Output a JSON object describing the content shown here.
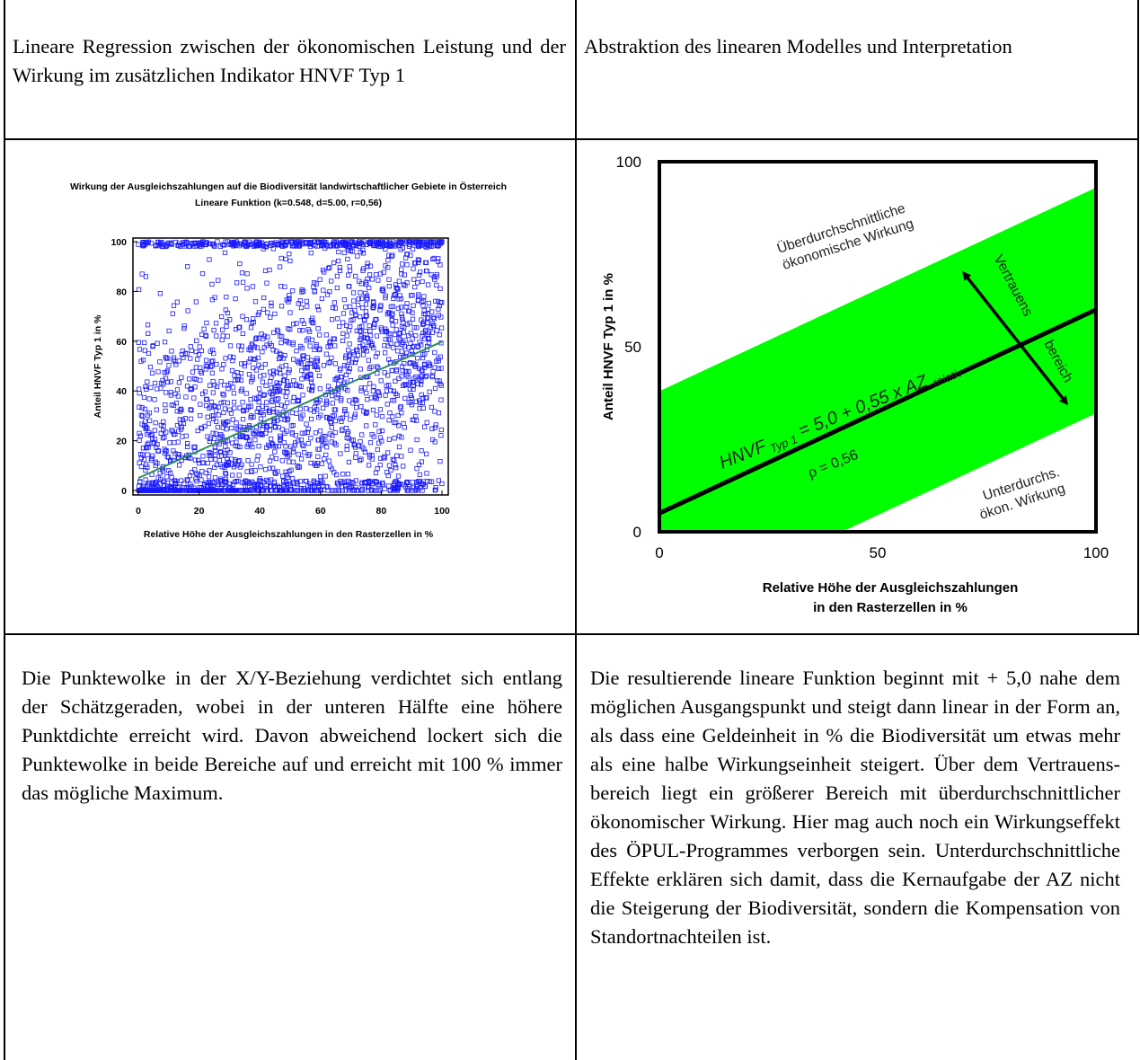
{
  "header": {
    "left": "Lineare Regression zwischen der ökonomischen Leistung und der Wirkung im zusätzlichen Indikator HNVF Typ 1",
    "right": "Abstraktion des linearen Modelles und Interpretation"
  },
  "text": {
    "left": "Die Punktewolke in der X/Y-Beziehung verdichtet sich entlang der Schätzgeraden, wobei in der unteren Hälfte eine höhere Punktdichte erreicht wird. Davon abweichend lockert sich die Punktewolke in beide Bereiche auf und erreicht mit 100 % immer das mögliche Maximum.",
    "right": "Die resultierende lineare Funktion beginnt mit + 5,0 nahe dem möglichen Ausgangspunkt und steigt dann linear in der Form an, als dass eine Geldeinheit in % die Biodiversität um etwas mehr als eine halbe Wirkungseinheit steigert. Über dem Vertrauens-bereich liegt ein größerer Bereich mit überdurchschnittlicher ökonomischer Wirkung. Hier mag auch noch ein Wirkungseffekt des ÖPUL-Programmes verborgen sein. Unterdurchschnittliche Effekte erklären sich damit, dass die Kernaufgabe der AZ nicht die Steigerung der Biodiversität, sondern die Kompensation von Standortnachteilen ist."
  },
  "chart_data": [
    {
      "type": "scatter",
      "title": "Wirkung der Ausgleichszahlungen auf die Biodiversität landwirtschaftlicher Gebiete in Österreich",
      "subtitle": "Lineare Funktion (k=0.548, d=5.00, r=0,56)",
      "xlabel": "Relative Höhe der Ausgleichszahlungen in den Rasterzellen in %",
      "ylabel": "Anteil HNVF Typ 1 in %",
      "xlim": [
        0,
        100
      ],
      "ylim": [
        0,
        100
      ],
      "xticks": [
        0,
        20,
        40,
        60,
        80,
        100
      ],
      "yticks": [
        0,
        20,
        40,
        60,
        80,
        100
      ],
      "regression": {
        "k": 0.548,
        "d": 5.0
      },
      "point_color": "#1a1aff",
      "line_color": "#2e8b57"
    },
    {
      "type": "line",
      "xlabel": "Relative Höhe der Ausgleichszahlungen\nin den Rasterzellen  in %",
      "ylabel": "Anteil HNVF Typ 1 in %",
      "xlim": [
        0,
        100
      ],
      "ylim": [
        0,
        100
      ],
      "xticks": [
        0,
        50,
        100
      ],
      "yticks": [
        0,
        50,
        100
      ],
      "line": {
        "intercept": 5.0,
        "slope": 0.55
      },
      "band": {
        "upper_offset": 33,
        "lower_offset": -28,
        "color": "#00ff00"
      },
      "annotations": {
        "above": "Überdurchschnittliche ökonomische Wirkung",
        "below": "Unterdurchs. ökon. Wirkung",
        "confidence": "Vertrauens bereich",
        "equation_main": "HNVF",
        "equation_sub": "Typ 1",
        "equation_rest": " = 5,0 + 0,55 x AZ ",
        "equation_sub2": "relativ",
        "r_label": "ρ = 0,56"
      }
    }
  ]
}
